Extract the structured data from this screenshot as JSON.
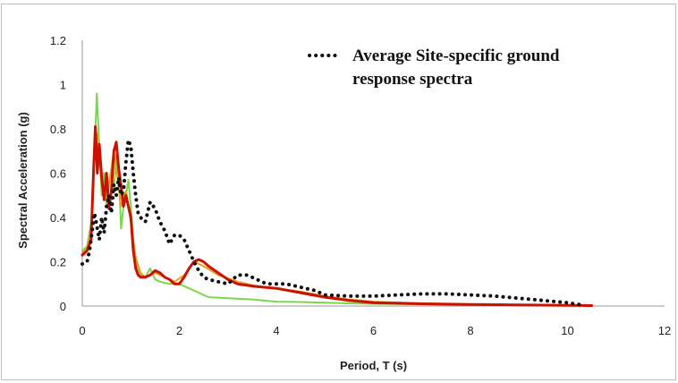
{
  "chart_data": {
    "type": "line",
    "title": "",
    "xlabel": "Period, T (s)",
    "ylabel": "Spectral Acceleration (g)",
    "xlim": [
      0,
      12
    ],
    "ylim": [
      0,
      1.2
    ],
    "xticks": [
      0,
      2,
      4,
      6,
      8,
      10,
      12
    ],
    "yticks": [
      0,
      0.2,
      0.4,
      0.6,
      0.8,
      1,
      1.2
    ],
    "xtick_labels": [
      "0",
      "2",
      "4",
      "6",
      "8",
      "10",
      "12"
    ],
    "ytick_labels": [
      "0",
      "0.2",
      "0.4",
      "0.6",
      "0.8",
      "1",
      "1.2"
    ],
    "grid": false,
    "legend": {
      "position": "top-right",
      "lines": [
        "Average Site-specific ground",
        "response spectra"
      ]
    },
    "series": [
      {
        "color": "#7cd64a",
        "style": "solid",
        "x": [
          0,
          0.1,
          0.2,
          0.25,
          0.3,
          0.35,
          0.4,
          0.45,
          0.5,
          0.55,
          0.6,
          0.65,
          0.7,
          0.75,
          0.8,
          0.85,
          0.9,
          0.95,
          1.0,
          1.05,
          1.1,
          1.15,
          1.2,
          1.3,
          1.4,
          1.5,
          1.6,
          1.8,
          2.0,
          2.2,
          2.4,
          2.6,
          3.0,
          3.5,
          4.0,
          4.5,
          5.0,
          5.5,
          6.0,
          7.0,
          8.0,
          9.0,
          10.0,
          10.4
        ],
        "y": [
          0.25,
          0.27,
          0.4,
          0.7,
          0.96,
          0.72,
          0.5,
          0.6,
          0.45,
          0.55,
          0.62,
          0.52,
          0.68,
          0.6,
          0.35,
          0.45,
          0.5,
          0.57,
          0.45,
          0.3,
          0.2,
          0.16,
          0.14,
          0.13,
          0.17,
          0.12,
          0.11,
          0.1,
          0.1,
          0.08,
          0.06,
          0.04,
          0.035,
          0.03,
          0.02,
          0.018,
          0.015,
          0.012,
          0.01,
          0.008,
          0.006,
          0.005,
          0.004,
          0.002
        ]
      },
      {
        "color": "#e8a020",
        "style": "solid",
        "x": [
          0,
          0.1,
          0.2,
          0.25,
          0.3,
          0.35,
          0.4,
          0.5,
          0.6,
          0.65,
          0.7,
          0.8,
          0.9,
          1.0,
          1.1,
          1.2,
          1.3,
          1.5,
          1.7,
          1.9,
          2.1,
          2.3,
          2.5,
          2.8,
          3.2,
          3.6,
          4.0,
          4.5,
          5.0,
          5.5,
          6.0,
          7.0,
          8.0,
          9.0,
          10.0,
          10.5
        ],
        "y": [
          0.24,
          0.26,
          0.38,
          0.7,
          0.78,
          0.68,
          0.55,
          0.48,
          0.62,
          0.7,
          0.62,
          0.45,
          0.52,
          0.38,
          0.22,
          0.15,
          0.13,
          0.15,
          0.13,
          0.11,
          0.14,
          0.2,
          0.18,
          0.14,
          0.11,
          0.09,
          0.08,
          0.065,
          0.045,
          0.03,
          0.02,
          0.012,
          0.008,
          0.006,
          0.004,
          0.003
        ]
      },
      {
        "color": "#cc1100",
        "style": "solid",
        "x": [
          0,
          0.1,
          0.18,
          0.23,
          0.27,
          0.31,
          0.35,
          0.4,
          0.45,
          0.5,
          0.55,
          0.6,
          0.65,
          0.7,
          0.75,
          0.8,
          0.85,
          0.9,
          0.95,
          1.0,
          1.05,
          1.1,
          1.15,
          1.2,
          1.3,
          1.4,
          1.5,
          1.6,
          1.7,
          1.8,
          1.9,
          2.0,
          2.1,
          2.2,
          2.3,
          2.4,
          2.5,
          2.6,
          2.8,
          3.0,
          3.2,
          3.5,
          4.0,
          4.5,
          5.0,
          5.5,
          6.0,
          7.0,
          8.0,
          9.0,
          10.0,
          10.5
        ],
        "y": [
          0.23,
          0.25,
          0.3,
          0.6,
          0.81,
          0.6,
          0.73,
          0.58,
          0.48,
          0.6,
          0.44,
          0.52,
          0.7,
          0.74,
          0.62,
          0.54,
          0.45,
          0.5,
          0.45,
          0.4,
          0.25,
          0.17,
          0.14,
          0.13,
          0.13,
          0.14,
          0.16,
          0.15,
          0.13,
          0.12,
          0.1,
          0.1,
          0.13,
          0.17,
          0.2,
          0.21,
          0.2,
          0.18,
          0.15,
          0.12,
          0.1,
          0.09,
          0.08,
          0.06,
          0.04,
          0.025,
          0.015,
          0.01,
          0.007,
          0.005,
          0.003,
          0.002
        ]
      },
      {
        "name": "Average Site-specific ground response spectra",
        "color": "#111111",
        "style": "dotted",
        "x": [
          0,
          0.1,
          0.15,
          0.2,
          0.25,
          0.3,
          0.35,
          0.4,
          0.45,
          0.5,
          0.55,
          0.6,
          0.65,
          0.7,
          0.75,
          0.8,
          0.85,
          0.9,
          0.95,
          1.0,
          1.05,
          1.1,
          1.15,
          1.2,
          1.3,
          1.4,
          1.5,
          1.6,
          1.7,
          1.8,
          1.9,
          2.0,
          2.1,
          2.2,
          2.3,
          2.4,
          2.5,
          2.6,
          2.8,
          3.0,
          3.2,
          3.4,
          3.6,
          3.8,
          4.0,
          4.2,
          4.4,
          4.6,
          4.8,
          5.0,
          5.5,
          6.0,
          6.5,
          7.0,
          7.5,
          8.0,
          8.5,
          9.0,
          9.5,
          10.0,
          10.3
        ],
        "y": [
          0.19,
          0.2,
          0.25,
          0.33,
          0.42,
          0.36,
          0.3,
          0.4,
          0.33,
          0.45,
          0.5,
          0.42,
          0.55,
          0.5,
          0.58,
          0.5,
          0.52,
          0.65,
          0.75,
          0.72,
          0.6,
          0.5,
          0.42,
          0.4,
          0.38,
          0.47,
          0.44,
          0.38,
          0.34,
          0.28,
          0.32,
          0.32,
          0.3,
          0.25,
          0.2,
          0.16,
          0.13,
          0.12,
          0.11,
          0.1,
          0.14,
          0.14,
          0.12,
          0.1,
          0.1,
          0.1,
          0.09,
          0.08,
          0.07,
          0.05,
          0.045,
          0.045,
          0.05,
          0.055,
          0.055,
          0.05,
          0.045,
          0.035,
          0.025,
          0.015,
          0.005
        ]
      }
    ]
  }
}
